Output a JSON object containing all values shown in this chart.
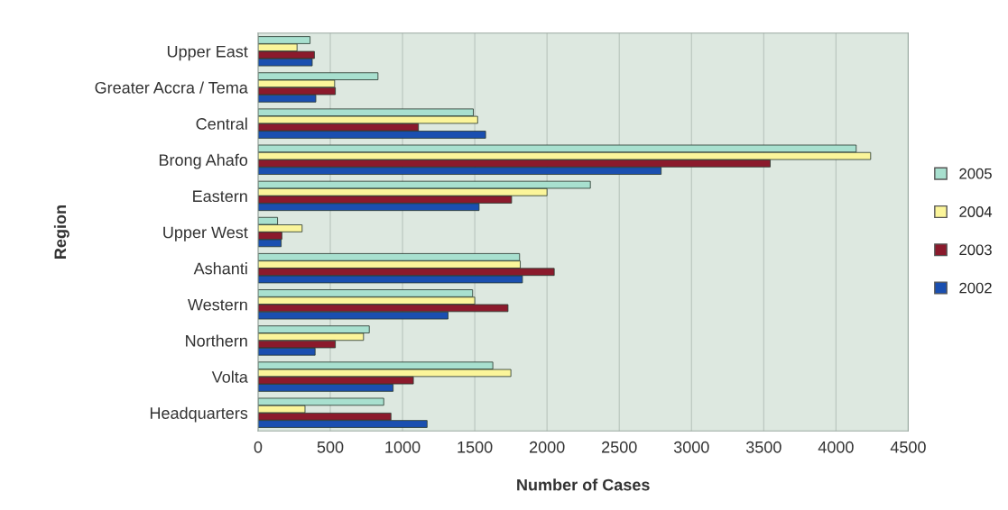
{
  "chart_data": {
    "type": "bar",
    "orientation": "horizontal",
    "xlabel": "Number of Cases",
    "ylabel": "Region",
    "categories": [
      "Upper East",
      "Greater Accra / Tema",
      "Central",
      "Brong Ahafo",
      "Eastern",
      "Upper West",
      "Ashanti",
      "Western",
      "Northern",
      "Volta",
      "Headquarters"
    ],
    "series": [
      {
        "name": "2005",
        "color": "#a8e0cf",
        "values": [
          360,
          830,
          1490,
          4140,
          2300,
          135,
          1810,
          1485,
          770,
          1625,
          870
        ]
      },
      {
        "name": "2004",
        "color": "#fbf59a",
        "values": [
          270,
          530,
          1520,
          4240,
          2000,
          305,
          1815,
          1500,
          730,
          1750,
          325
        ]
      },
      {
        "name": "2003",
        "color": "#8b1a2c",
        "values": [
          390,
          535,
          1110,
          3545,
          1755,
          165,
          2050,
          1730,
          535,
          1075,
          920
        ]
      },
      {
        "name": "2002",
        "color": "#1a4fb0",
        "values": [
          375,
          400,
          1575,
          2790,
          1530,
          160,
          1830,
          1315,
          395,
          935,
          1170
        ]
      }
    ],
    "xlim": [
      0,
      4500
    ],
    "xticks": [
      0,
      500,
      1000,
      1500,
      2000,
      2500,
      3000,
      3500,
      4000,
      4500
    ],
    "grid": "x",
    "legend": "right"
  }
}
